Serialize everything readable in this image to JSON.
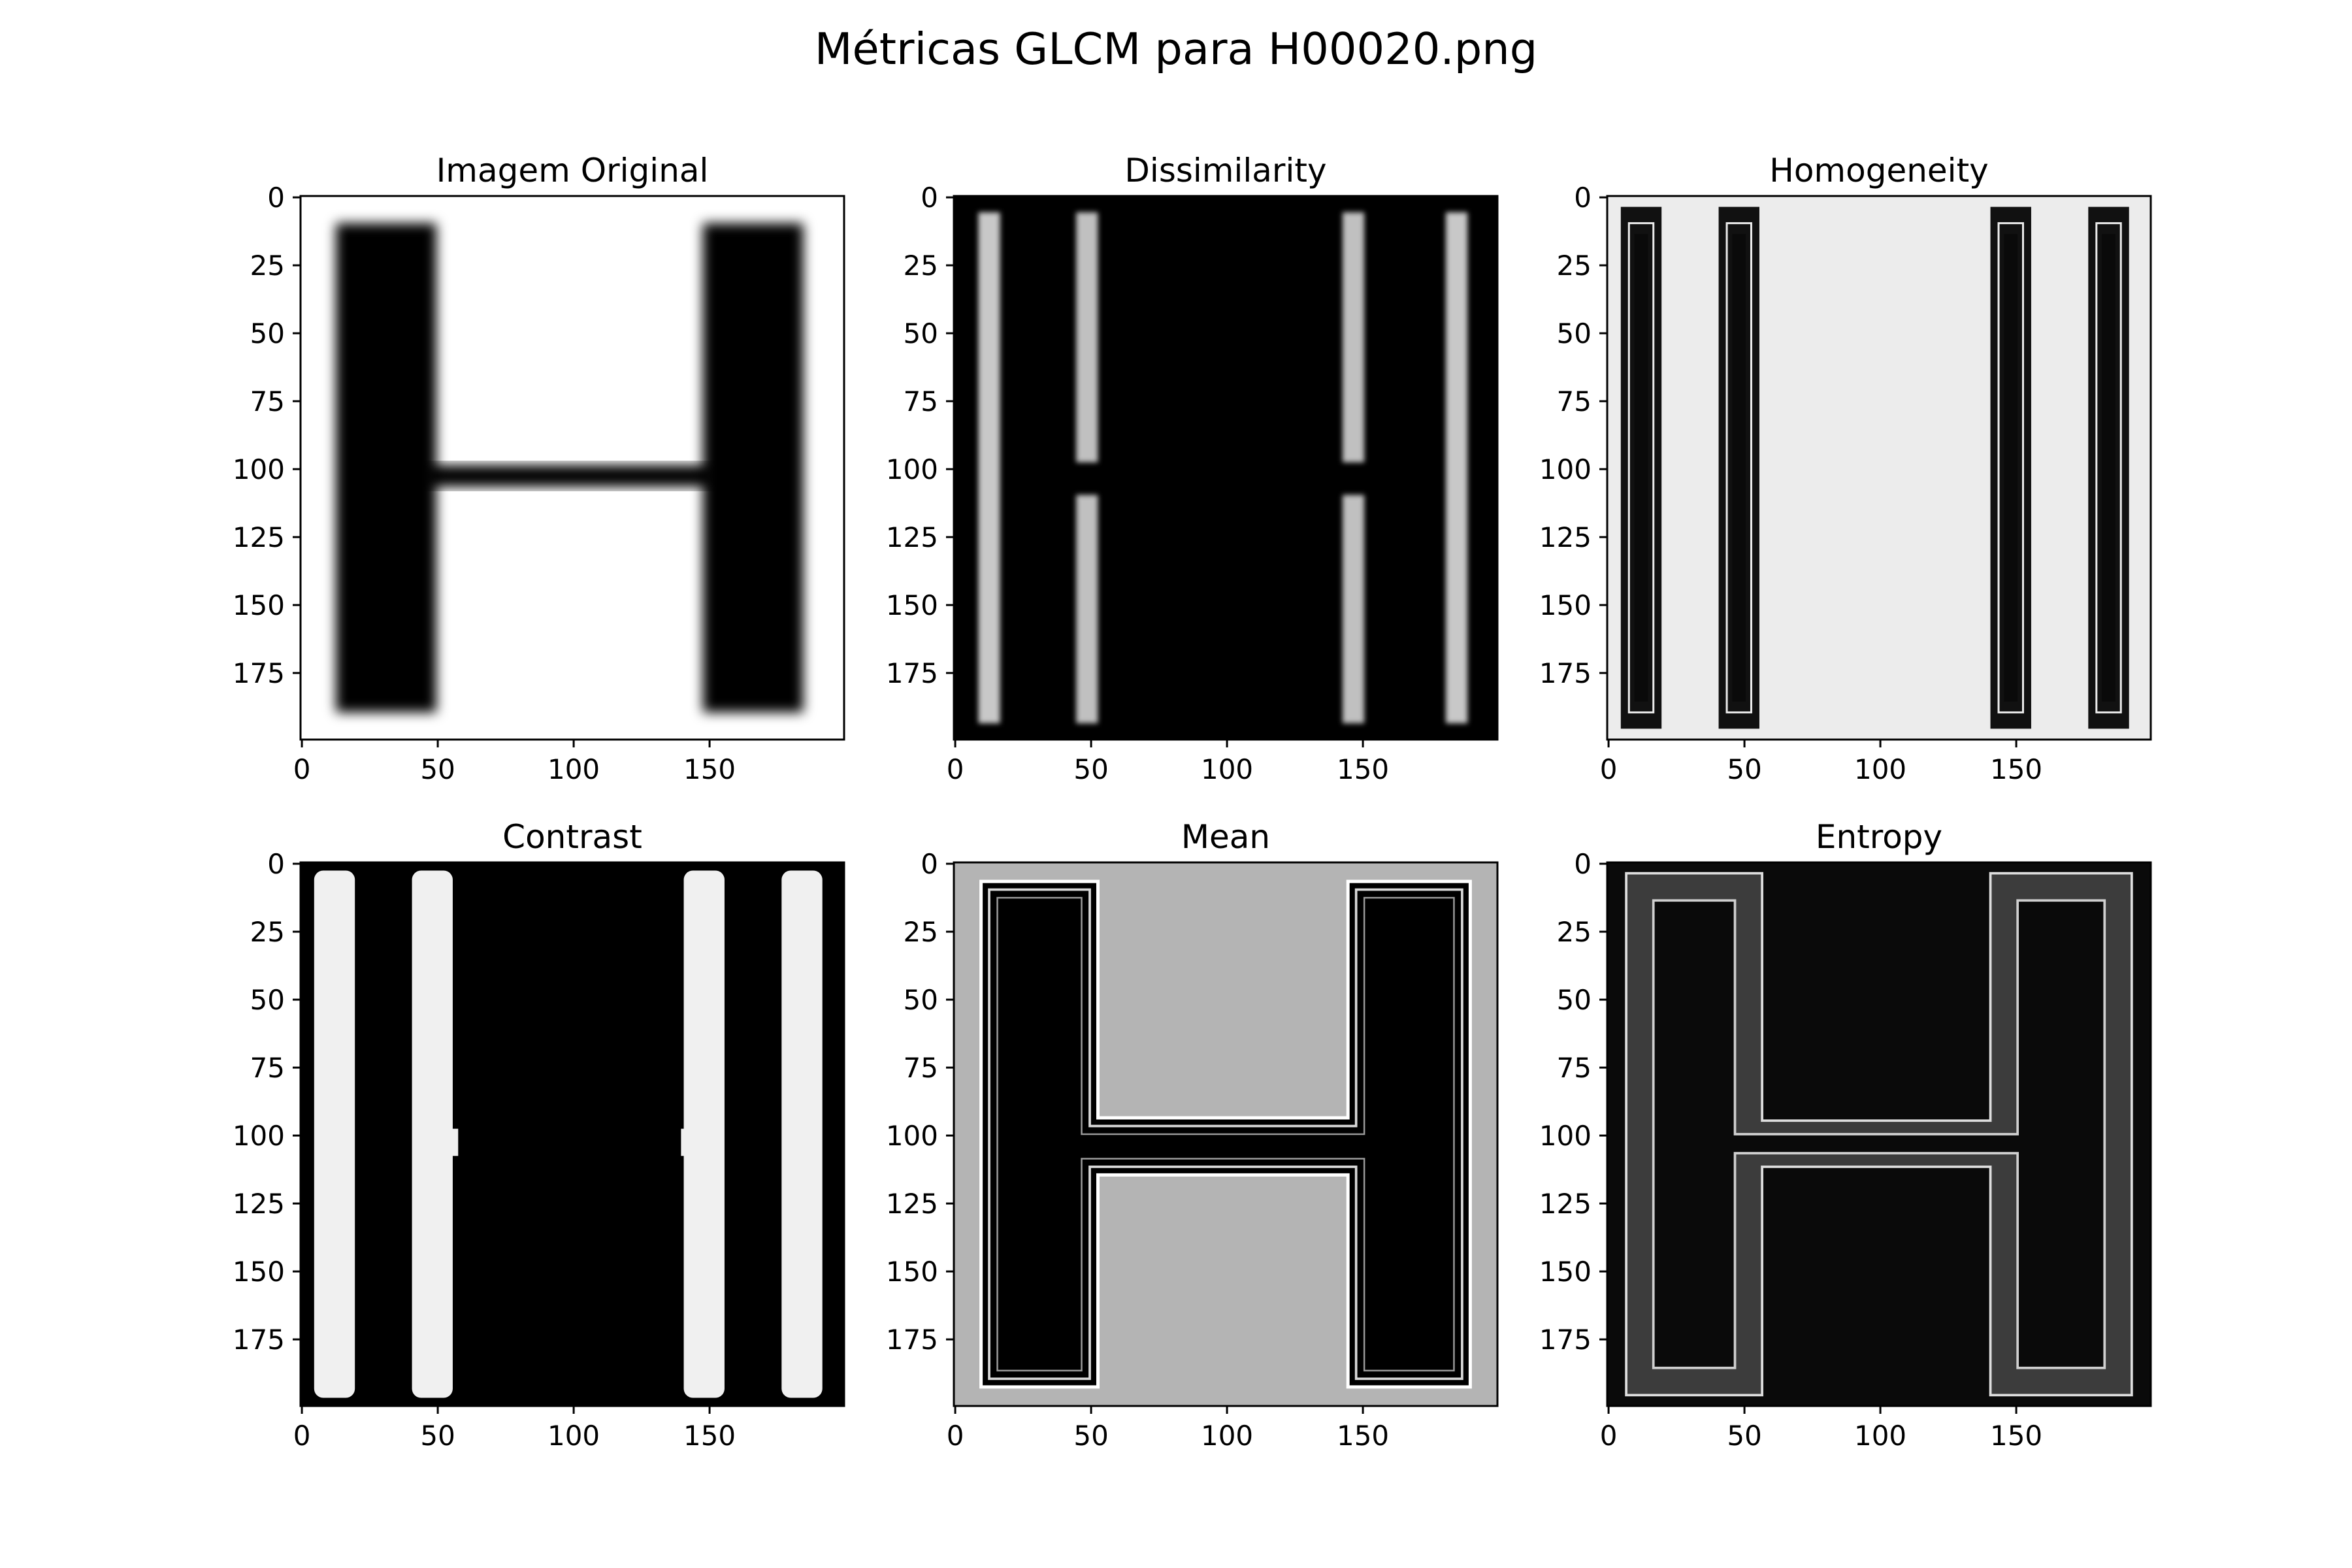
{
  "title": "Métricas GLCM para H00020.png",
  "chart_data": [
    {
      "type": "heatmap",
      "title": "Imagem Original",
      "colormap": "gray",
      "xlim": [
        0,
        199
      ],
      "ylim": [
        199,
        0
      ],
      "xticks": [
        0,
        50,
        100,
        150
      ],
      "yticks": [
        0,
        25,
        50,
        75,
        100,
        125,
        150,
        175
      ]
    },
    {
      "type": "heatmap",
      "title": "Dissimilarity",
      "colormap": "gray",
      "xlim": [
        0,
        199
      ],
      "ylim": [
        199,
        0
      ],
      "xticks": [
        0,
        50,
        100,
        150
      ],
      "yticks": [
        0,
        25,
        50,
        75,
        100,
        125,
        150,
        175
      ]
    },
    {
      "type": "heatmap",
      "title": "Homogeneity",
      "colormap": "gray",
      "xlim": [
        0,
        199
      ],
      "ylim": [
        199,
        0
      ],
      "xticks": [
        0,
        50,
        100,
        150
      ],
      "yticks": [
        0,
        25,
        50,
        75,
        100,
        125,
        150,
        175
      ]
    },
    {
      "type": "heatmap",
      "title": "Contrast",
      "colormap": "gray",
      "xlim": [
        0,
        199
      ],
      "ylim": [
        199,
        0
      ],
      "xticks": [
        0,
        50,
        100,
        150
      ],
      "yticks": [
        0,
        25,
        50,
        75,
        100,
        125,
        150,
        175
      ]
    },
    {
      "type": "heatmap",
      "title": "Mean",
      "colormap": "gray",
      "xlim": [
        0,
        199
      ],
      "ylim": [
        199,
        0
      ],
      "xticks": [
        0,
        50,
        100,
        150
      ],
      "yticks": [
        0,
        25,
        50,
        75,
        100,
        125,
        150,
        175
      ]
    },
    {
      "type": "heatmap",
      "title": "Entropy",
      "colormap": "gray",
      "xlim": [
        0,
        199
      ],
      "ylim": [
        199,
        0
      ],
      "xticks": [
        0,
        50,
        100,
        150
      ],
      "yticks": [
        0,
        25,
        50,
        75,
        100,
        125,
        150,
        175
      ]
    }
  ]
}
